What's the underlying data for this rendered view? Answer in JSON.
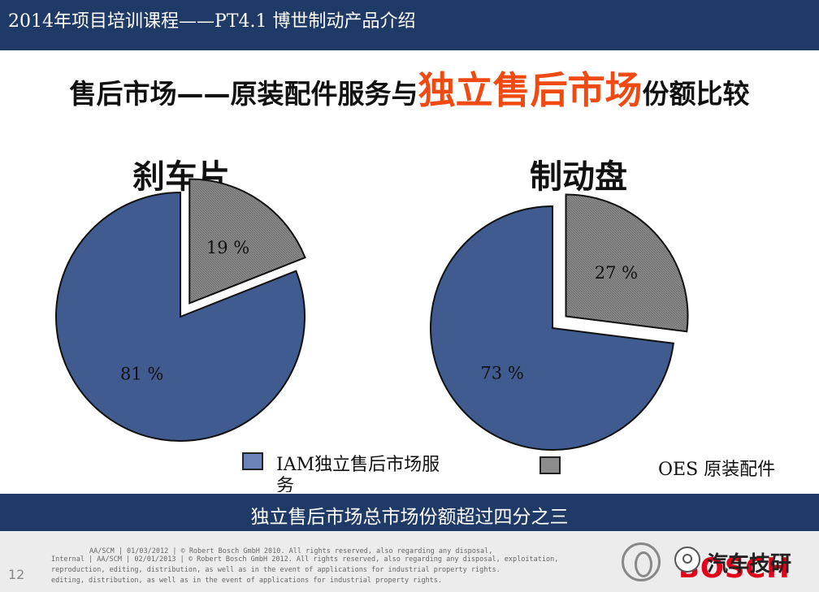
{
  "header": {
    "title": "2014年项目培训课程——PT4.1 博世制动产品介绍"
  },
  "main_title": {
    "prefix": "售后市场——原装配件服务与",
    "highlight": "独立售后市场",
    "suffix": "份额比较"
  },
  "legend": {
    "iam": "IAM独立售后市场服务",
    "oes": "OES 原装配件"
  },
  "bottom_banner": "独立售后市场总市场份额超过四分之三",
  "footer": {
    "page_number": "12",
    "legal_line1": "AA/SCM | 01/03/2012 | © Robert Bosch GmbH 2010. All rights reserved, also regarding any disposal,",
    "legal_line2": "Internal | AA/SCM | 02/01/2013 | © Robert Bosch GmbH 2012. All rights reserved, also regarding any disposal, exploitation,",
    "legal_line3": "reproduction, editing, distribution, as well as in the event of applications for industrial property rights.",
    "legal_line4": "editing, distribution, as well as in the event of applications for industrial property rights.",
    "brand": "BOSCH",
    "watermark": "汽车技研"
  },
  "colors": {
    "header": "#1f3a66",
    "iam": "#3f5b8f",
    "oes": "#8c8c8c",
    "highlight": "#f04a13"
  },
  "chart_data": [
    {
      "type": "pie",
      "title": "刹车片",
      "slices": [
        {
          "label": "IAM独立售后市场服务",
          "value": 81,
          "display": "81 %"
        },
        {
          "label": "OES 原装配件",
          "value": 19,
          "display": "19 %"
        }
      ]
    },
    {
      "type": "pie",
      "title": "制动盘",
      "slices": [
        {
          "label": "IAM独立售后市场服务",
          "value": 73,
          "display": "73 %"
        },
        {
          "label": "OES 原装配件",
          "value": 27,
          "display": "27 %"
        }
      ]
    }
  ]
}
